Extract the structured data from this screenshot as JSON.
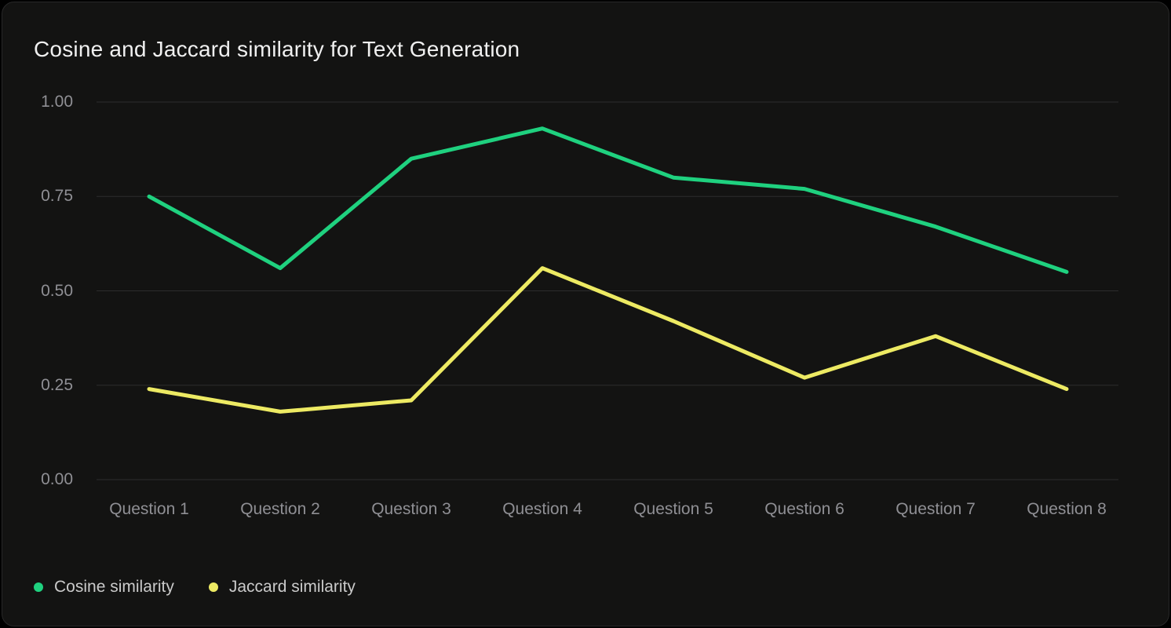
{
  "chart_data": {
    "type": "line",
    "title": "Cosine and Jaccard similarity for Text Generation",
    "categories": [
      "Question 1",
      "Question 2",
      "Question 3",
      "Question 4",
      "Question 5",
      "Question 6",
      "Question 7",
      "Question 8"
    ],
    "series": [
      {
        "name": "Cosine similarity",
        "color": "#1fd17f",
        "values": [
          0.75,
          0.56,
          0.85,
          0.93,
          0.8,
          0.77,
          0.67,
          0.55
        ]
      },
      {
        "name": "Jaccard similarity",
        "color": "#edea63",
        "values": [
          0.24,
          0.18,
          0.21,
          0.56,
          0.42,
          0.27,
          0.38,
          0.24
        ]
      }
    ],
    "xlabel": "",
    "ylabel": "",
    "ylim": [
      0.0,
      1.0
    ],
    "yticks": [
      "0.00",
      "0.25",
      "0.50",
      "0.75",
      "1.00"
    ],
    "grid": "horizontal",
    "legend_position": "bottom-left"
  },
  "colors": {
    "page_background": "#000000",
    "card_background": "#131312",
    "card_border": "#282828",
    "gridline": "#2d2d2d",
    "title_text": "#f0f0f0",
    "tick_text": "#8f8f94",
    "legend_text": "#cacaca"
  }
}
